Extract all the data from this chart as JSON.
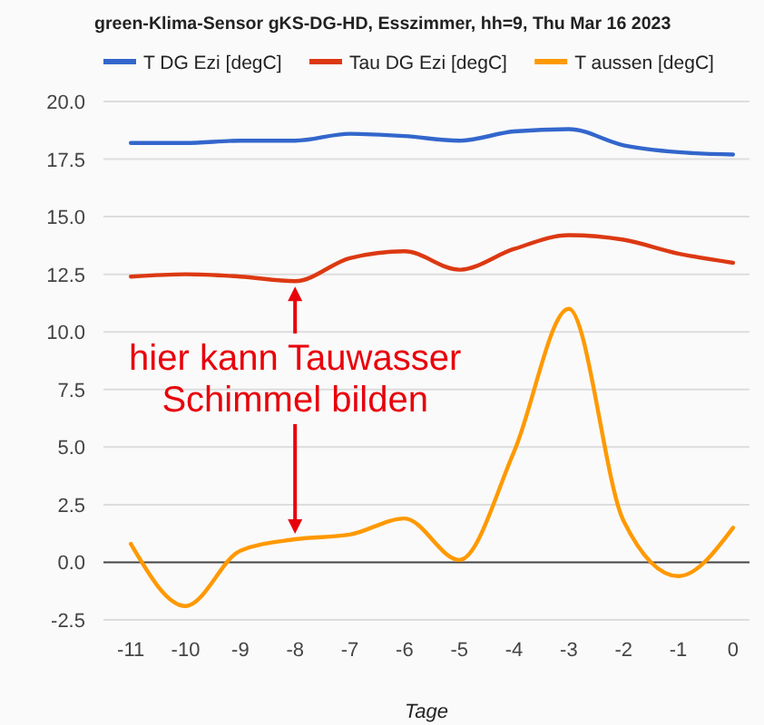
{
  "chart_data": {
    "type": "line",
    "title": "green-Klima-Sensor gKS-DG-HD, Esszimmer, hh=9, Thu Mar 16 2023",
    "xlabel": "Tage",
    "x": [
      -11,
      -10,
      -9,
      -8,
      -7,
      -6,
      -5,
      -4,
      -3,
      -2,
      -1,
      0
    ],
    "series": [
      {
        "name": "T DG Ezi [degC]",
        "color": "#3366cc",
        "values": [
          18.2,
          18.2,
          18.3,
          18.3,
          18.6,
          18.5,
          18.3,
          18.7,
          18.8,
          18.1,
          17.8,
          17.7
        ]
      },
      {
        "name": "Tau DG Ezi [degC]",
        "color": "#dc3912",
        "values": [
          12.4,
          12.5,
          12.4,
          12.2,
          13.2,
          13.5,
          12.7,
          13.6,
          14.2,
          14.0,
          13.4,
          13.0
        ]
      },
      {
        "name": "T aussen [degC]",
        "color": "#ff9900",
        "values": [
          0.8,
          -1.9,
          0.5,
          1.0,
          1.2,
          1.9,
          0.1,
          4.8,
          11.0,
          1.8,
          -0.6,
          1.5
        ]
      }
    ],
    "xlim": [
      -11.5,
      0.3
    ],
    "xticks": [
      -11,
      -10,
      -9,
      -8,
      -7,
      -6,
      -5,
      -4,
      -3,
      -2,
      -1,
      0
    ],
    "ylim": [
      -2.5,
      20
    ],
    "yticks": [
      {
        "value": -2.5,
        "label": "-2.5"
      },
      {
        "value": 0,
        "label": "0.0"
      },
      {
        "value": 2.5,
        "label": "2.5"
      },
      {
        "value": 5,
        "label": "5.0"
      },
      {
        "value": 7.5,
        "label": "7.5"
      },
      {
        "value": 10,
        "label": "10.0"
      },
      {
        "value": 12.5,
        "label": "12.5"
      },
      {
        "value": 15,
        "label": "15.0"
      },
      {
        "value": 17.5,
        "label": "17.5"
      },
      {
        "value": 20,
        "label": "20.0"
      }
    ],
    "grid": "y",
    "legend": "top",
    "marker": "none",
    "line_style": "solid",
    "annotations": [
      {
        "text": "hier kann Tauwasser\nSchimmel bilden",
        "x": -8,
        "y": 12.2
      }
    ]
  }
}
